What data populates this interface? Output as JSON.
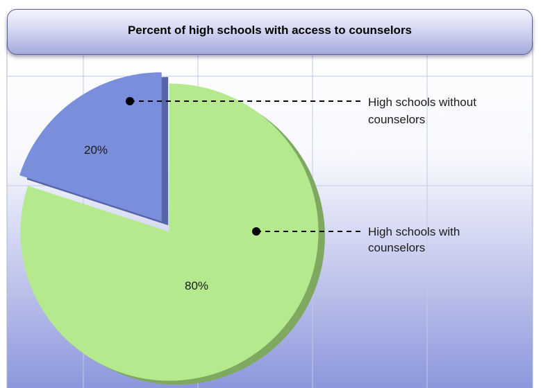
{
  "chart_data": {
    "type": "pie",
    "title": "Percent of high schools with access to counselors",
    "slices": [
      {
        "label_lines": [
          "High schools with",
          "counselors"
        ],
        "value": 80,
        "value_label": "80%",
        "color": "#b5e98e",
        "side_color": "#7fa860"
      },
      {
        "label_lines": [
          "High schools without",
          "counselors"
        ],
        "value": 20,
        "value_label": "20%",
        "color": "#7b8edb",
        "side_color": "#5664a8",
        "exploded": true
      }
    ]
  },
  "colors": {
    "background_top": "#ffffff",
    "background_bottom": "#8d97dc",
    "gridline": "#c4c9e6"
  }
}
